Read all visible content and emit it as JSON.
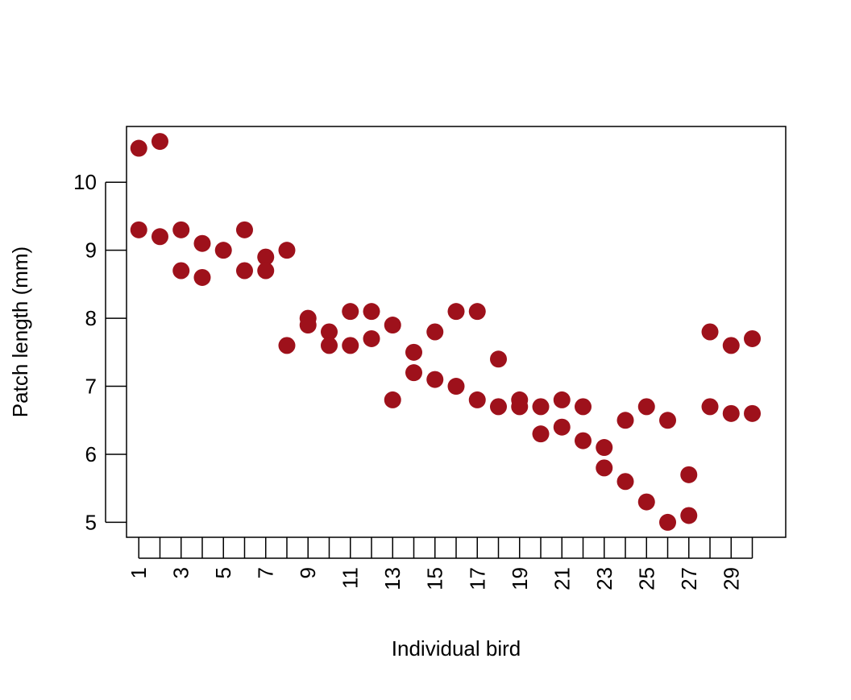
{
  "chart_data": {
    "type": "scatter",
    "title": "",
    "xlabel": "Individual bird",
    "ylabel": "Patch length (mm)",
    "xlim": [
      0.42,
      31.58
    ],
    "ylim": [
      4.78,
      10.82
    ],
    "x_ticks": [
      1,
      2,
      3,
      4,
      5,
      6,
      7,
      8,
      9,
      10,
      11,
      12,
      13,
      14,
      15,
      16,
      17,
      18,
      19,
      20,
      21,
      22,
      23,
      24,
      25,
      26,
      27,
      28,
      29,
      30
    ],
    "x_tick_labels": [
      "1",
      "",
      "3",
      "",
      "5",
      "",
      "7",
      "",
      "9",
      "",
      "11",
      "",
      "13",
      "",
      "15",
      "",
      "17",
      "",
      "19",
      "",
      "21",
      "",
      "23",
      "",
      "25",
      "",
      "27",
      "",
      "29",
      ""
    ],
    "y_ticks": [
      5,
      6,
      7,
      8,
      9,
      10
    ],
    "y_tick_labels": [
      "5",
      "6",
      "7",
      "8",
      "9",
      "10"
    ],
    "marker_color": "#9e111b",
    "grid": false,
    "legend": "none",
    "points": [
      {
        "x": 1,
        "y": 10.5
      },
      {
        "x": 1,
        "y": 9.3
      },
      {
        "x": 2,
        "y": 10.6
      },
      {
        "x": 2,
        "y": 9.2
      },
      {
        "x": 3,
        "y": 9.3
      },
      {
        "x": 3,
        "y": 8.7
      },
      {
        "x": 4,
        "y": 9.1
      },
      {
        "x": 4,
        "y": 8.6
      },
      {
        "x": 5,
        "y": 9.0
      },
      {
        "x": 6,
        "y": 9.3
      },
      {
        "x": 6,
        "y": 8.7
      },
      {
        "x": 7,
        "y": 8.9
      },
      {
        "x": 7,
        "y": 8.7
      },
      {
        "x": 8,
        "y": 9.0
      },
      {
        "x": 8,
        "y": 7.6
      },
      {
        "x": 9,
        "y": 8.0
      },
      {
        "x": 9,
        "y": 7.9
      },
      {
        "x": 10,
        "y": 7.8
      },
      {
        "x": 10,
        "y": 7.6
      },
      {
        "x": 11,
        "y": 8.1
      },
      {
        "x": 11,
        "y": 7.6
      },
      {
        "x": 12,
        "y": 8.1
      },
      {
        "x": 12,
        "y": 7.7
      },
      {
        "x": 13,
        "y": 7.9
      },
      {
        "x": 13,
        "y": 6.8
      },
      {
        "x": 14,
        "y": 7.5
      },
      {
        "x": 14,
        "y": 7.2
      },
      {
        "x": 15,
        "y": 7.8
      },
      {
        "x": 15,
        "y": 7.1
      },
      {
        "x": 16,
        "y": 8.1
      },
      {
        "x": 16,
        "y": 7.0
      },
      {
        "x": 17,
        "y": 8.1
      },
      {
        "x": 17,
        "y": 6.8
      },
      {
        "x": 18,
        "y": 7.4
      },
      {
        "x": 18,
        "y": 6.7
      },
      {
        "x": 19,
        "y": 6.8
      },
      {
        "x": 19,
        "y": 6.7
      },
      {
        "x": 20,
        "y": 6.7
      },
      {
        "x": 20,
        "y": 6.3
      },
      {
        "x": 21,
        "y": 6.8
      },
      {
        "x": 21,
        "y": 6.4
      },
      {
        "x": 22,
        "y": 6.7
      },
      {
        "x": 22,
        "y": 6.2
      },
      {
        "x": 23,
        "y": 6.1
      },
      {
        "x": 23,
        "y": 5.8
      },
      {
        "x": 24,
        "y": 6.5
      },
      {
        "x": 24,
        "y": 5.6
      },
      {
        "x": 25,
        "y": 6.7
      },
      {
        "x": 25,
        "y": 5.3
      },
      {
        "x": 26,
        "y": 6.5
      },
      {
        "x": 26,
        "y": 5.0
      },
      {
        "x": 27,
        "y": 5.7
      },
      {
        "x": 27,
        "y": 5.1
      },
      {
        "x": 28,
        "y": 7.8
      },
      {
        "x": 28,
        "y": 6.7
      },
      {
        "x": 29,
        "y": 7.6
      },
      {
        "x": 29,
        "y": 6.6
      },
      {
        "x": 30,
        "y": 7.7
      },
      {
        "x": 30,
        "y": 6.6
      }
    ]
  }
}
